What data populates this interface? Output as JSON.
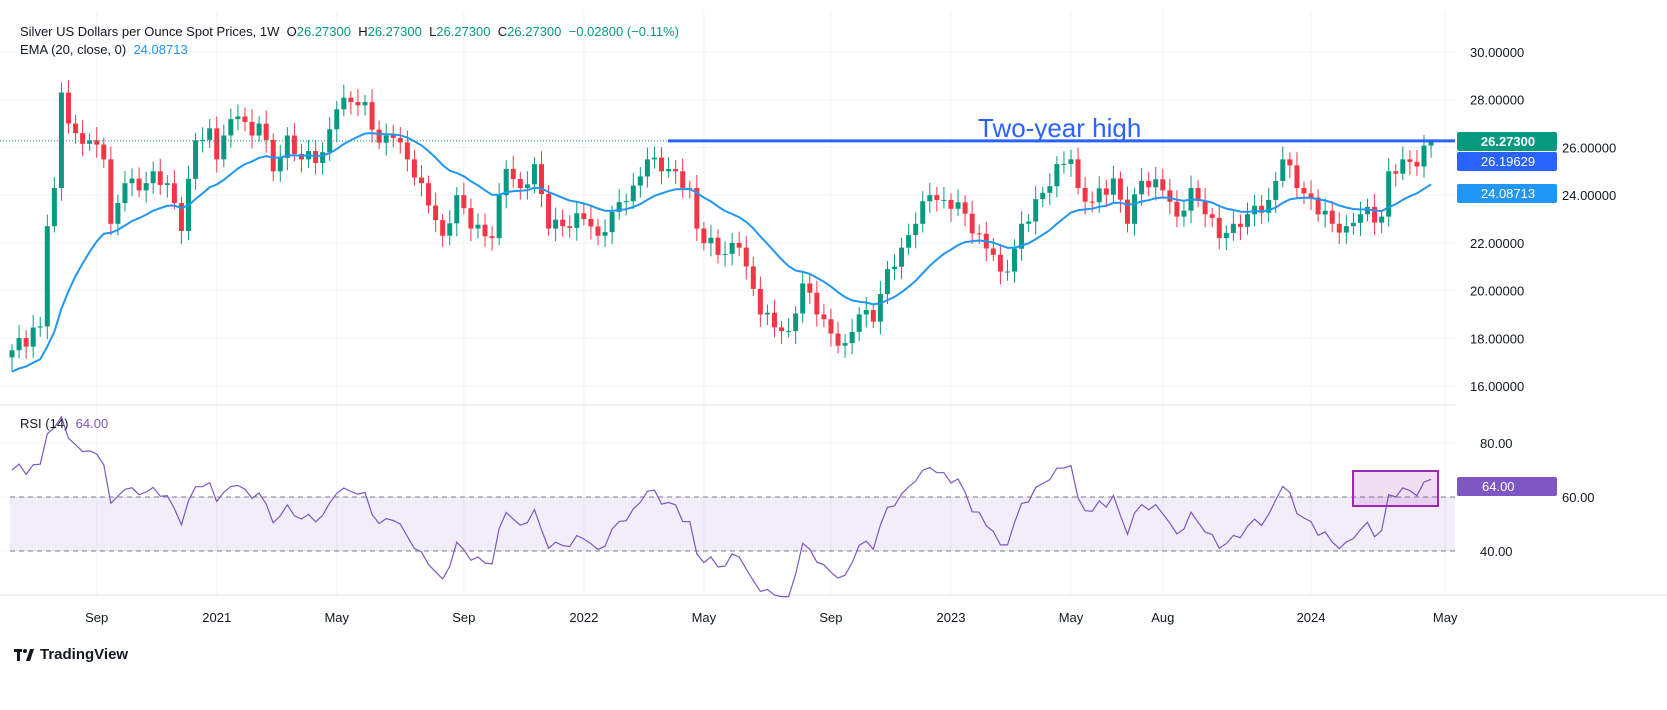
{
  "header": {
    "title": "Silver US Dollars per Ounce Spot Prices, 1W",
    "open_label": "O",
    "open": "26.27300",
    "high_label": "H",
    "high": "26.27300",
    "low_label": "L",
    "low": "26.27300",
    "close_label": "C",
    "close": "26.27300",
    "change": "−0.02800 (−0.11%)"
  },
  "ema_legend": {
    "label": "EMA (20, close, 0)",
    "value": "24.08713"
  },
  "rsi_legend": {
    "label": "RSI (14)",
    "value": "64.00"
  },
  "annotation": "Two-year high",
  "price_labels": {
    "last": "26.27300",
    "line": "26.19629",
    "ema": "24.08713",
    "rsi": "64.00"
  },
  "colors": {
    "up": "#089981",
    "down": "#f23645",
    "ema": "#2196f3",
    "line": "#2962ff",
    "rsi": "#7e57c2",
    "box": "#9c27b0"
  },
  "branding": "TradingView",
  "chart_data": {
    "type": "candlestick",
    "title": "Silver US Dollars per Ounce Spot Prices, 1W",
    "price_axis": {
      "ticks": [
        "30.00000",
        "28.00000",
        "26.00000",
        "24.00000",
        "22.00000",
        "20.00000",
        "18.00000",
        "16.00000"
      ],
      "range": [
        16,
        30
      ]
    },
    "rsi_axis": {
      "ticks": [
        "80.00",
        "60.00",
        "40.00"
      ],
      "band": [
        40,
        60
      ]
    },
    "time_ticks": [
      {
        "label": "Sep",
        "week": 12
      },
      {
        "label": "2021",
        "week": 29
      },
      {
        "label": "May",
        "week": 46
      },
      {
        "label": "Sep",
        "week": 64
      },
      {
        "label": "2022",
        "week": 81
      },
      {
        "label": "May",
        "week": 98
      },
      {
        "label": "Sep",
        "week": 116
      },
      {
        "label": "2023",
        "week": 133
      },
      {
        "label": "May",
        "week": 150
      },
      {
        "label": "Aug",
        "week": 163
      },
      {
        "label": "2024",
        "week": 184
      },
      {
        "label": "May",
        "week": 203
      }
    ],
    "horizontal_level": 26.273,
    "ema_start": 16.6,
    "weekly_close_points": [
      [
        0,
        17.5
      ],
      [
        4,
        18.5
      ],
      [
        5,
        22.7
      ],
      [
        6,
        24.3
      ],
      [
        7,
        28.3
      ],
      [
        8,
        27
      ],
      [
        9,
        26.6
      ],
      [
        11,
        26.3
      ],
      [
        13,
        25.5
      ],
      [
        14,
        22.8
      ],
      [
        16,
        24.5
      ],
      [
        18,
        24.2
      ],
      [
        20,
        25
      ],
      [
        22,
        24.5
      ],
      [
        24,
        22.5
      ],
      [
        26,
        26.3
      ],
      [
        28,
        26.8
      ],
      [
        29,
        25.5
      ],
      [
        30,
        26.5
      ],
      [
        32,
        27.3
      ],
      [
        34,
        26.5
      ],
      [
        35,
        27
      ],
      [
        37,
        25
      ],
      [
        39,
        26.5
      ],
      [
        41,
        25.5
      ],
      [
        44,
        25.8
      ],
      [
        46,
        27.6
      ],
      [
        48,
        27.9
      ],
      [
        50,
        27.9
      ],
      [
        52,
        26.2
      ],
      [
        54,
        26.4
      ],
      [
        56,
        25.5
      ],
      [
        58,
        24.5
      ],
      [
        61,
        22.3
      ],
      [
        63,
        24
      ],
      [
        65,
        22.6
      ],
      [
        68,
        22.2
      ],
      [
        70,
        25.1
      ],
      [
        72,
        24.3
      ],
      [
        74,
        25.3
      ],
      [
        76,
        22.6
      ],
      [
        78,
        22.7
      ],
      [
        81,
        23
      ],
      [
        83,
        22.3
      ],
      [
        85,
        23.3
      ],
      [
        88,
        24.4
      ],
      [
        90,
        25.5
      ],
      [
        92,
        25
      ],
      [
        94,
        25
      ],
      [
        96,
        24.3
      ],
      [
        97,
        22.6
      ],
      [
        100,
        21.5
      ],
      [
        103,
        21.8
      ],
      [
        106,
        19
      ],
      [
        109,
        18.3
      ],
      [
        110,
        18.3
      ],
      [
        112,
        20.3
      ],
      [
        114,
        19
      ],
      [
        116,
        18.2
      ],
      [
        118,
        17.8
      ],
      [
        120,
        19
      ],
      [
        122,
        18.7
      ],
      [
        124,
        20.9
      ],
      [
        126,
        21.8
      ],
      [
        128,
        22.8
      ],
      [
        130,
        24
      ],
      [
        132,
        23.8
      ],
      [
        134,
        23.7
      ],
      [
        136,
        22.4
      ],
      [
        139,
        21.5
      ],
      [
        140,
        20.8
      ],
      [
        141,
        20.8
      ],
      [
        143,
        22.8
      ],
      [
        146,
        24.1
      ],
      [
        148,
        25.3
      ],
      [
        150,
        25.5
      ],
      [
        151,
        24.3
      ],
      [
        153,
        23.7
      ],
      [
        156,
        24.7
      ],
      [
        158,
        22.8
      ],
      [
        160,
        24.6
      ],
      [
        163,
        24.2
      ],
      [
        165,
        23.1
      ],
      [
        167,
        24.3
      ],
      [
        169,
        23.2
      ],
      [
        171,
        22.2
      ],
      [
        173,
        22.8
      ],
      [
        175,
        23.2
      ],
      [
        178,
        23.8
      ],
      [
        180,
        25.5
      ],
      [
        182,
        24.3
      ],
      [
        184,
        23.9
      ],
      [
        187,
        22.8
      ],
      [
        189,
        22.7
      ],
      [
        191,
        23.2
      ],
      [
        194,
        23.1
      ],
      [
        195,
        25
      ],
      [
        197,
        25.5
      ],
      [
        199,
        25.2
      ],
      [
        201,
        26.273
      ]
    ]
  }
}
